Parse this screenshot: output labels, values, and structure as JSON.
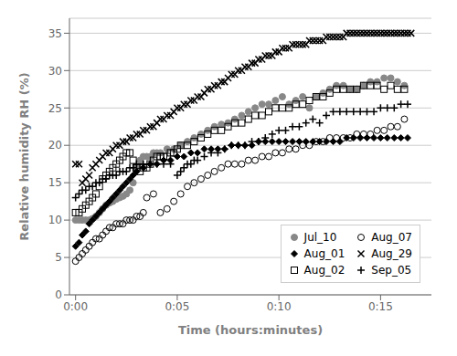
{
  "chart_data": {
    "type": "scatter",
    "title": "",
    "xlabel": "Time (hours:minutes)",
    "ylabel": "Relative humidity RH (%)",
    "xlim": [
      -0.3,
      17.5
    ],
    "ylim": [
      0,
      37
    ],
    "xticks": [
      {
        "value": 0,
        "label": "0:00"
      },
      {
        "value": 5,
        "label": "0:05"
      },
      {
        "value": 10,
        "label": "0:10"
      },
      {
        "value": 15,
        "label": "0:15"
      }
    ],
    "yticks": [
      0,
      5,
      10,
      15,
      20,
      25,
      30,
      35
    ],
    "grid": "y",
    "legend": "lower right",
    "series": [
      {
        "name": "Jul_10",
        "marker": "circle",
        "color": "#888888",
        "x": [
          0.0,
          0.17,
          0.33,
          0.5,
          0.67,
          0.83,
          1.0,
          1.17,
          1.33,
          1.5,
          1.67,
          1.83,
          2.0,
          2.17,
          2.33,
          2.5,
          2.67,
          2.83,
          3.0,
          3.17,
          3.33,
          3.5,
          3.67,
          3.83,
          4.0,
          4.17,
          4.5,
          4.83,
          5.17,
          5.5,
          5.83,
          6.17,
          6.5,
          6.83,
          7.17,
          7.5,
          7.83,
          8.17,
          8.5,
          8.83,
          9.17,
          9.5,
          9.83,
          10.17,
          10.5,
          10.83,
          11.17,
          11.5,
          11.83,
          12.17,
          12.5,
          12.83,
          13.17,
          13.5,
          13.83,
          14.17,
          14.5,
          14.83,
          15.17,
          15.5,
          15.83,
          16.17
        ],
        "values": [
          10.0,
          10.0,
          10.0,
          10.0,
          10.0,
          10.2,
          10.5,
          11.0,
          11.5,
          12.0,
          12.3,
          12.5,
          12.8,
          13.0,
          13.2,
          13.5,
          14.0,
          15.0,
          17.0,
          18.0,
          18.5,
          18.5,
          18.5,
          19.0,
          19.0,
          19.0,
          19.5,
          19.5,
          20.0,
          20.5,
          21.0,
          21.5,
          22.0,
          22.5,
          22.8,
          23.0,
          23.5,
          24.0,
          24.5,
          25.0,
          25.5,
          25.5,
          26.0,
          26.5,
          25.5,
          26.0,
          26.5,
          25.0,
          26.5,
          27.0,
          27.5,
          28.0,
          28.0,
          27.5,
          27.5,
          28.0,
          28.5,
          28.5,
          29.0,
          29.0,
          28.5,
          28.0
        ]
      },
      {
        "name": "Aug_01",
        "marker": "diamond",
        "color": "#000000",
        "x": [
          0.0,
          0.17,
          0.33,
          0.5,
          0.67,
          0.83,
          1.0,
          1.17,
          1.33,
          1.5,
          1.67,
          1.83,
          2.0,
          2.17,
          2.33,
          2.5,
          2.67,
          2.83,
          3.0,
          3.33,
          3.67,
          4.0,
          4.33,
          4.67,
          5.0,
          5.33,
          5.67,
          6.0,
          6.33,
          6.67,
          7.0,
          7.33,
          7.67,
          8.0,
          8.33,
          8.67,
          9.0,
          9.33,
          9.67,
          10.0,
          10.33,
          10.67,
          11.0,
          11.33,
          11.67,
          12.0,
          12.33,
          12.67,
          13.0,
          13.33,
          13.67,
          14.0,
          14.33,
          14.67,
          15.0,
          15.33,
          15.67,
          16.0,
          16.33
        ],
        "values": [
          6.5,
          7.0,
          8.0,
          8.5,
          9.5,
          10.0,
          10.5,
          11.0,
          11.5,
          12.0,
          12.5,
          13.0,
          13.5,
          14.0,
          14.5,
          15.0,
          15.5,
          16.0,
          16.5,
          17.0,
          17.5,
          17.5,
          18.0,
          18.0,
          18.5,
          18.5,
          19.0,
          19.0,
          19.5,
          19.5,
          19.5,
          19.5,
          20.0,
          20.0,
          20.0,
          20.0,
          20.5,
          20.5,
          20.5,
          20.5,
          20.5,
          20.5,
          20.5,
          20.5,
          20.5,
          20.5,
          20.5,
          20.5,
          20.5,
          21.0,
          21.0,
          21.0,
          21.0,
          21.0,
          21.0,
          21.0,
          21.0,
          21.0,
          21.0
        ]
      },
      {
        "name": "Aug_02",
        "marker": "square_open",
        "color": "#000000",
        "x": [
          0.0,
          0.17,
          0.33,
          0.5,
          0.67,
          0.83,
          1.0,
          1.17,
          1.33,
          1.5,
          1.67,
          1.83,
          2.0,
          2.17,
          2.33,
          2.5,
          2.67,
          2.83,
          3.0,
          3.17,
          3.33,
          3.5,
          3.67,
          3.83,
          4.0,
          4.17,
          4.33,
          4.5,
          4.67,
          4.83,
          5.0,
          5.17,
          5.5,
          5.83,
          6.17,
          6.5,
          6.83,
          7.17,
          7.5,
          7.83,
          8.17,
          8.5,
          8.83,
          9.17,
          9.5,
          9.83,
          10.17,
          10.5,
          10.83,
          11.17,
          11.5,
          11.83,
          12.17,
          12.5,
          12.83,
          13.17,
          13.5,
          13.83,
          14.17,
          14.5,
          14.83,
          15.17,
          15.5,
          15.83,
          16.17
        ],
        "values": [
          11.0,
          11.0,
          11.5,
          12.0,
          12.5,
          13.0,
          13.5,
          14.5,
          15.5,
          16.0,
          16.5,
          17.0,
          17.5,
          18.0,
          18.5,
          19.0,
          19.0,
          18.0,
          17.0,
          16.5,
          17.0,
          17.0,
          17.5,
          18.0,
          18.5,
          18.5,
          18.5,
          18.5,
          19.0,
          19.0,
          19.5,
          20.0,
          20.0,
          20.5,
          21.0,
          21.5,
          22.0,
          22.0,
          22.5,
          23.0,
          23.0,
          23.5,
          24.0,
          24.0,
          24.5,
          25.0,
          25.0,
          25.0,
          25.5,
          25.5,
          26.0,
          26.5,
          26.5,
          27.0,
          27.5,
          27.5,
          27.5,
          27.5,
          28.0,
          28.0,
          28.0,
          27.5,
          28.0,
          27.5,
          27.5
        ]
      },
      {
        "name": "Aug_07",
        "marker": "circle_open",
        "color": "#000000",
        "x": [
          0.0,
          0.17,
          0.33,
          0.5,
          0.67,
          0.83,
          1.0,
          1.17,
          1.33,
          1.5,
          1.67,
          1.83,
          2.0,
          2.17,
          2.33,
          2.5,
          2.67,
          2.83,
          3.0,
          3.17,
          3.33,
          3.5,
          3.83,
          4.17,
          4.5,
          4.83,
          5.17,
          5.5,
          5.83,
          6.17,
          6.5,
          6.83,
          7.17,
          7.5,
          7.83,
          8.17,
          8.5,
          8.83,
          9.17,
          9.5,
          9.83,
          10.17,
          10.5,
          10.83,
          11.17,
          11.5,
          11.83,
          12.17,
          12.5,
          12.83,
          13.17,
          13.5,
          13.83,
          14.17,
          14.5,
          14.83,
          15.17,
          15.5,
          15.83,
          16.17
        ],
        "values": [
          4.5,
          5.0,
          5.5,
          6.0,
          6.5,
          7.0,
          7.5,
          7.5,
          8.0,
          8.5,
          9.0,
          9.0,
          9.5,
          9.5,
          9.5,
          10.0,
          10.0,
          10.0,
          10.5,
          10.5,
          11.0,
          13.0,
          13.5,
          11.0,
          11.5,
          12.5,
          13.5,
          14.5,
          15.0,
          15.5,
          16.0,
          16.5,
          17.0,
          17.5,
          17.5,
          17.5,
          18.0,
          18.0,
          18.5,
          18.5,
          19.0,
          19.0,
          19.5,
          19.5,
          20.0,
          20.0,
          20.5,
          20.5,
          21.0,
          21.0,
          21.0,
          21.0,
          21.5,
          21.5,
          21.5,
          22.0,
          22.0,
          22.5,
          22.5,
          23.5
        ]
      },
      {
        "name": "Aug_29",
        "marker": "x",
        "color": "#000000",
        "x": [
          0.0,
          0.17,
          0.33,
          0.5,
          0.67,
          0.83,
          1.0,
          1.17,
          1.33,
          1.5,
          1.67,
          1.83,
          2.0,
          2.17,
          2.33,
          2.5,
          2.67,
          2.83,
          3.0,
          3.17,
          3.33,
          3.5,
          3.67,
          3.83,
          4.0,
          4.17,
          4.33,
          4.5,
          4.67,
          4.83,
          5.0,
          5.17,
          5.33,
          5.5,
          5.67,
          5.83,
          6.0,
          6.17,
          6.33,
          6.5,
          6.67,
          6.83,
          7.0,
          7.17,
          7.33,
          7.5,
          7.67,
          7.83,
          8.0,
          8.17,
          8.33,
          8.5,
          8.67,
          8.83,
          9.0,
          9.17,
          9.33,
          9.5,
          9.67,
          9.83,
          10.0,
          10.17,
          10.33,
          10.5,
          10.67,
          10.83,
          11.0,
          11.17,
          11.33,
          11.5,
          11.67,
          11.83,
          12.0,
          12.17,
          12.33,
          12.5,
          12.67,
          12.83,
          13.0,
          13.17,
          13.33,
          13.5,
          13.67,
          13.83,
          14.0,
          14.17,
          14.33,
          14.5,
          14.67,
          14.83,
          15.0,
          15.17,
          15.33,
          15.5,
          15.67,
          15.83,
          16.0,
          16.17,
          16.33,
          16.5
        ],
        "values": [
          17.5,
          17.5,
          15.0,
          15.5,
          16.0,
          17.0,
          17.5,
          18.0,
          18.5,
          19.0,
          19.0,
          19.5,
          20.0,
          20.0,
          20.5,
          20.5,
          21.0,
          21.0,
          21.5,
          21.5,
          22.0,
          22.0,
          22.5,
          22.5,
          23.0,
          23.5,
          23.5,
          24.0,
          24.0,
          24.5,
          25.0,
          25.0,
          25.5,
          25.5,
          26.0,
          26.0,
          26.5,
          26.5,
          27.0,
          27.5,
          27.5,
          28.0,
          28.0,
          28.5,
          28.5,
          29.0,
          29.5,
          29.5,
          30.0,
          30.0,
          30.5,
          30.5,
          31.0,
          31.0,
          31.5,
          31.5,
          32.0,
          32.0,
          32.0,
          32.5,
          32.5,
          33.0,
          33.0,
          33.0,
          33.5,
          33.5,
          33.5,
          33.5,
          33.5,
          34.0,
          34.0,
          34.0,
          34.0,
          34.0,
          34.5,
          34.5,
          34.5,
          34.5,
          34.5,
          34.5,
          35.0,
          35.0,
          35.0,
          35.0,
          35.0,
          35.0,
          35.0,
          35.0,
          35.0,
          35.0,
          35.0,
          35.0,
          35.0,
          35.0,
          35.0,
          35.0,
          35.0,
          35.0,
          35.0,
          35.0
        ]
      },
      {
        "name": "Sep_05",
        "marker": "plus",
        "color": "#000000",
        "x": [
          0.0,
          0.17,
          0.33,
          0.5,
          0.67,
          0.83,
          1.0,
          1.17,
          1.33,
          1.5,
          1.67,
          1.83,
          2.0,
          2.17,
          2.33,
          2.5,
          2.67,
          2.83,
          3.0,
          3.33,
          3.67,
          4.0,
          4.33,
          4.67,
          5.0,
          5.17,
          5.33,
          5.5,
          5.67,
          5.83,
          6.0,
          6.33,
          6.67,
          7.0,
          7.33,
          7.67,
          8.0,
          8.33,
          8.67,
          9.0,
          9.33,
          9.67,
          10.0,
          10.33,
          10.67,
          11.0,
          11.33,
          11.67,
          12.0,
          12.33,
          12.67,
          13.0,
          13.33,
          13.67,
          14.0,
          14.33,
          14.67,
          15.0,
          15.33,
          15.67,
          16.0,
          16.33
        ],
        "values": [
          13.0,
          13.5,
          14.0,
          14.0,
          14.5,
          14.5,
          15.0,
          15.0,
          15.5,
          15.5,
          16.0,
          16.0,
          16.0,
          16.5,
          16.5,
          16.5,
          17.0,
          17.0,
          17.5,
          17.5,
          17.5,
          17.5,
          17.5,
          17.5,
          16.0,
          16.5,
          17.0,
          17.5,
          17.5,
          18.0,
          18.0,
          18.5,
          19.0,
          19.0,
          19.5,
          20.0,
          20.0,
          20.0,
          20.5,
          20.5,
          21.0,
          21.5,
          22.0,
          22.0,
          22.5,
          22.5,
          23.0,
          23.5,
          23.0,
          24.0,
          24.5,
          24.5,
          24.5,
          24.5,
          24.5,
          24.5,
          24.5,
          25.0,
          25.0,
          25.0,
          25.5,
          25.5
        ]
      }
    ]
  }
}
